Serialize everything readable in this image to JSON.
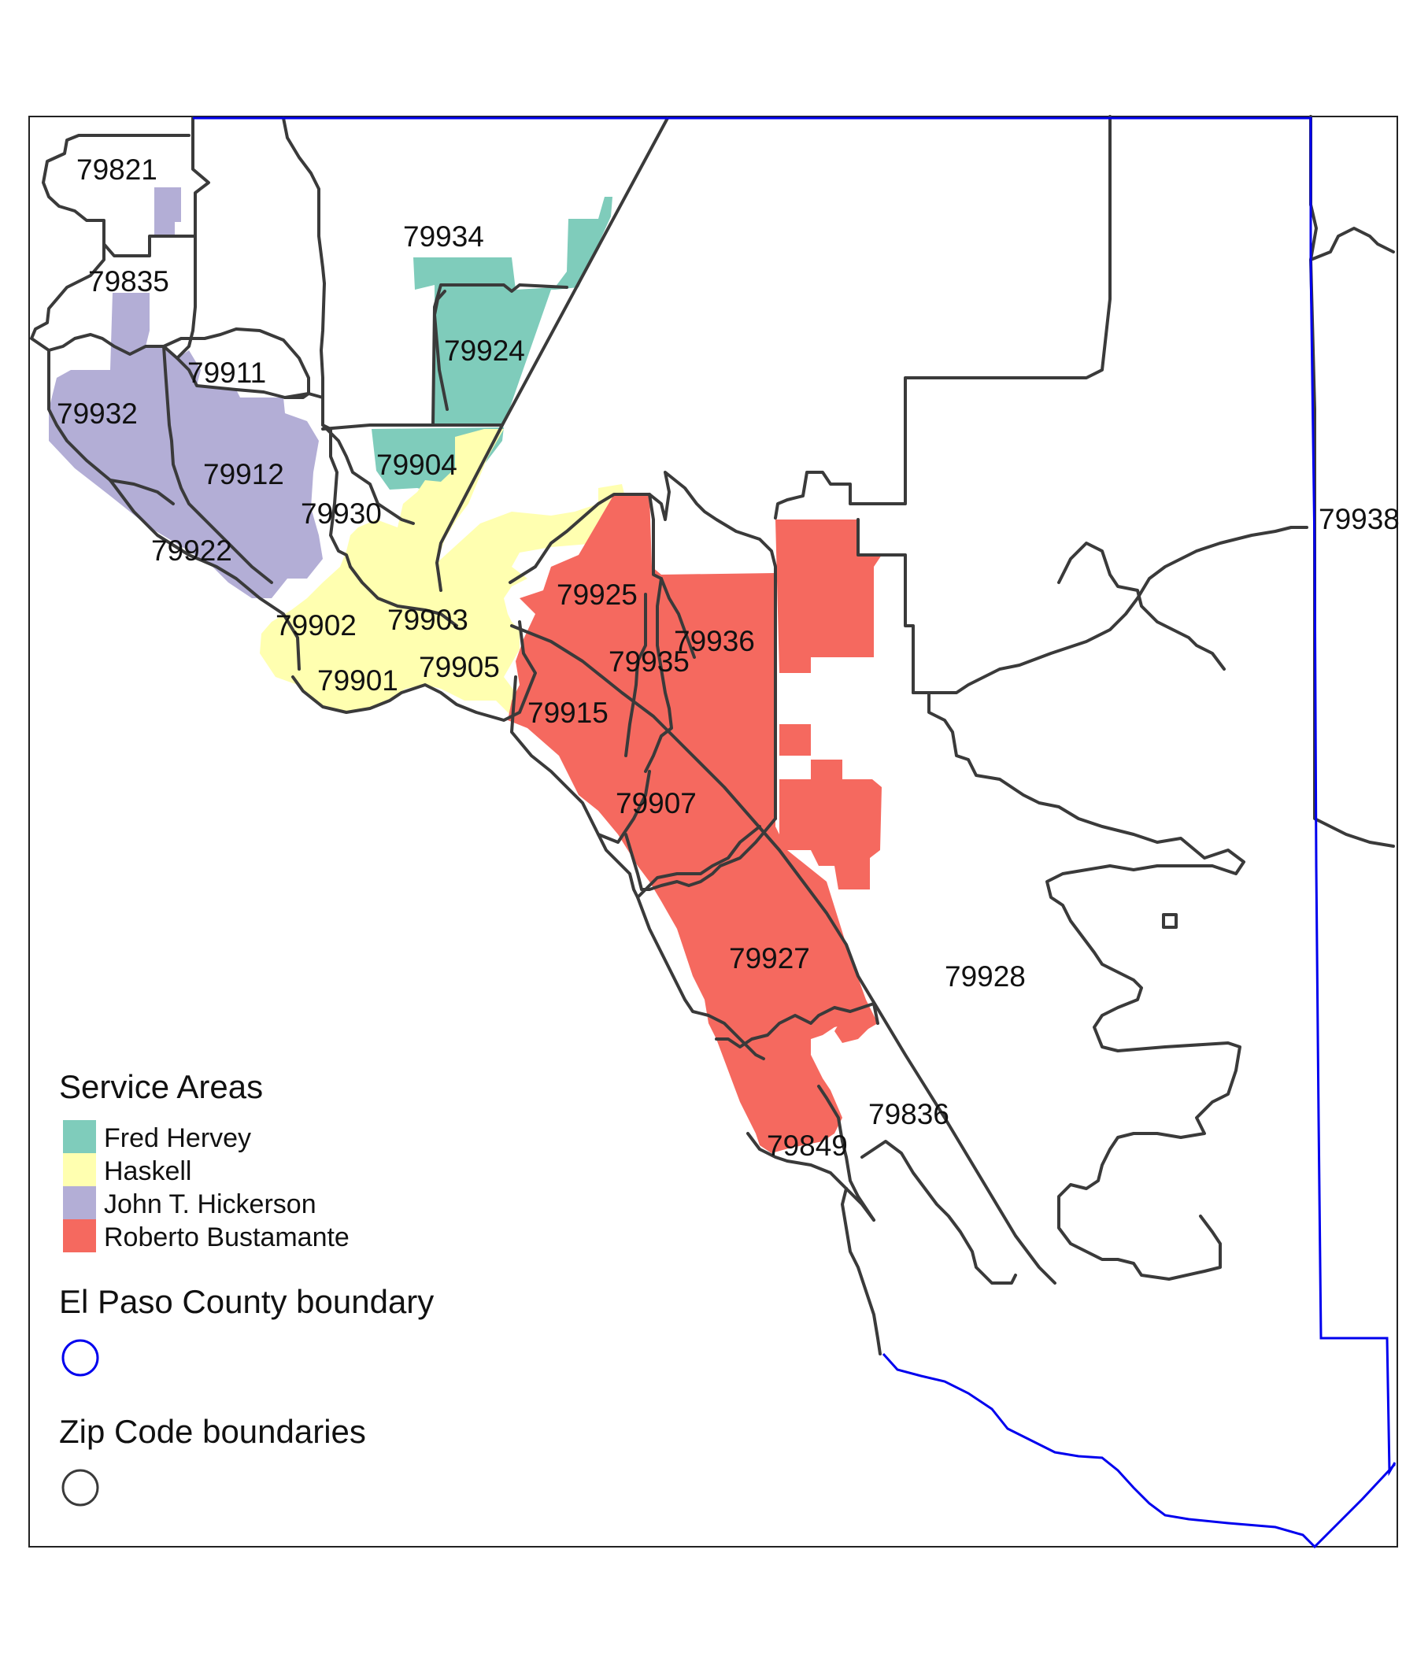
{
  "colors": {
    "fred_hervey": "#7fccbb",
    "haskell": "#ffffb0",
    "john_t_hickerson": "#b3aed6",
    "roberto_bustamante": "#f5695f",
    "county_boundary": "#0000ee",
    "zip_boundary": "#3a3a3a"
  },
  "zip_labels": [
    "79821",
    "79835",
    "79934",
    "79924",
    "79911",
    "79932",
    "79904",
    "79912",
    "79930",
    "79922",
    "79938",
    "79925",
    "79902",
    "79903",
    "79936",
    "79935",
    "79905",
    "79901",
    "79915",
    "79907",
    "79927",
    "79928",
    "79836",
    "79849"
  ],
  "legend": {
    "service_areas": {
      "title": "Service Areas",
      "items": [
        {
          "label": "Fred Hervey",
          "color": "#7fccbb"
        },
        {
          "label": "Haskell",
          "color": "#ffffb0"
        },
        {
          "label": "John T. Hickerson",
          "color": "#b3aed6"
        },
        {
          "label": "Roberto Bustamante",
          "color": "#f5695f"
        }
      ]
    },
    "county": {
      "title": "El Paso County boundary"
    },
    "zip": {
      "title": "Zip Code boundaries"
    }
  }
}
